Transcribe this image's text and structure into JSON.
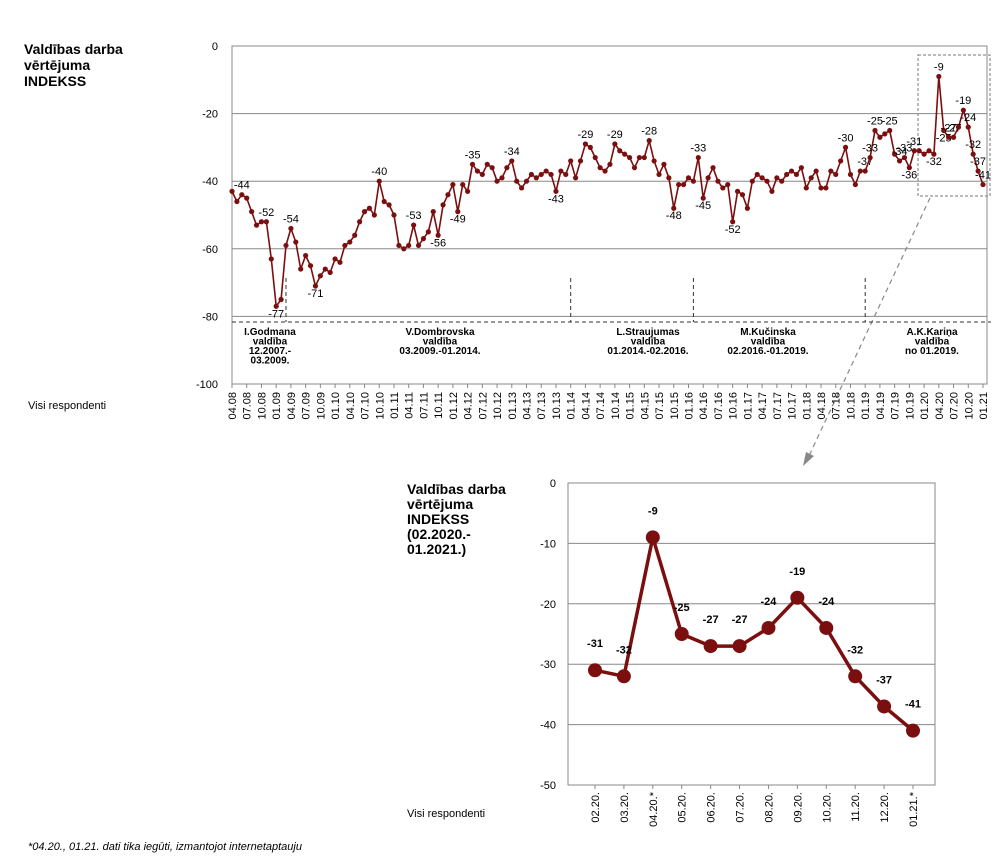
{
  "chart_data": [
    {
      "type": "line",
      "title": [
        "Valdības darba",
        "vērtējuma",
        "INDEKSS"
      ],
      "x_label": "Visi respondenti",
      "categories": [
        "04.08",
        null,
        null,
        "07.08",
        null,
        null,
        "10.08",
        null,
        null,
        "01.09",
        null,
        null,
        "04.09",
        null,
        null,
        "07.09",
        null,
        null,
        "10.09",
        null,
        null,
        "01.10",
        null,
        null,
        "04.10",
        null,
        null,
        "07.10",
        null,
        null,
        "10.10",
        null,
        null,
        "01.11",
        null,
        null,
        "04.11",
        null,
        null,
        "07.11",
        null,
        null,
        "10.11",
        null,
        null,
        "01.12",
        null,
        null,
        "04.12",
        null,
        null,
        "07.12",
        null,
        null,
        "10.12",
        null,
        null,
        "01.13",
        null,
        null,
        "04.13",
        null,
        null,
        "07.13",
        null,
        null,
        "10.13",
        null,
        null,
        "01.14",
        null,
        null,
        "04.14",
        null,
        null,
        "07.14",
        null,
        null,
        "10.14",
        null,
        null,
        "01.15",
        null,
        null,
        "04.15",
        null,
        null,
        "07.15",
        null,
        null,
        "10.15",
        null,
        null,
        "01.16",
        null,
        null,
        "04.16",
        null,
        null,
        "07.16",
        null,
        null,
        "10.16",
        null,
        null,
        "01.17",
        null,
        null,
        "04.17",
        null,
        null,
        "07.17",
        null,
        null,
        "10.17",
        null,
        null,
        "01.18",
        null,
        null,
        "04.18",
        null,
        null,
        "07.18",
        null,
        null,
        "10.18",
        null,
        null,
        "01.19",
        null,
        null,
        "04.19",
        null,
        null,
        "07.19",
        null,
        null,
        "10.19",
        null,
        null,
        "01.20",
        null,
        null,
        "04.20",
        null,
        null,
        "07.20",
        null,
        null,
        "10.20",
        null,
        null,
        "01.21"
      ],
      "values": [
        -43,
        -46,
        -44,
        -45,
        -49,
        -53,
        -52,
        -52,
        -63,
        -77,
        -75,
        -59,
        -54,
        -58,
        -66,
        -62,
        -65,
        -71,
        -68,
        -66,
        -67,
        -63,
        -64,
        -59,
        -58,
        -56,
        -52,
        -49,
        -48,
        -50,
        -40,
        -46,
        -47,
        -50,
        -59,
        -60,
        -59,
        -53,
        -59,
        -57,
        -55,
        -49,
        -56,
        -47,
        -44,
        -41,
        -49,
        -41,
        -43,
        -35,
        -37,
        -38,
        -35,
        -36,
        -40,
        -39,
        -36,
        -34,
        -40,
        -42,
        -40,
        -38,
        -39,
        -38,
        -37,
        -38,
        -43,
        -37,
        -38,
        -34,
        -39,
        -34,
        -29,
        -30,
        -33,
        -36,
        -37,
        -35,
        -29,
        -31,
        -32,
        -33,
        -36,
        -33,
        -33,
        -28,
        -34,
        -38,
        -35,
        -39,
        -48,
        -41,
        -41,
        -39,
        -40,
        -33,
        -45,
        -39,
        -36,
        -40,
        -42,
        -41,
        -52,
        -43,
        -44,
        -48,
        -40,
        -38,
        -39,
        -40,
        -43,
        -39,
        -40,
        -38,
        -37,
        -38,
        -36,
        -42,
        -39,
        -37,
        -42,
        -42,
        -37,
        -38,
        -34,
        -30,
        -38,
        -41,
        -37,
        -37,
        -33,
        -25,
        -27,
        -26,
        -25,
        -32,
        -34,
        -33,
        -36,
        -31,
        -31,
        -32,
        -31,
        -32,
        -9,
        -25,
        -27,
        -27,
        -24,
        -19,
        -24,
        -32,
        -37,
        -41
      ],
      "value_labels": [
        null,
        null,
        "-44",
        null,
        null,
        null,
        null,
        "-52",
        null,
        "-77",
        null,
        null,
        "-54",
        null,
        null,
        null,
        null,
        "-71",
        null,
        null,
        null,
        null,
        null,
        null,
        null,
        null,
        null,
        null,
        null,
        null,
        "-40",
        null,
        null,
        null,
        null,
        null,
        null,
        "-53",
        null,
        null,
        null,
        null,
        "-56",
        null,
        null,
        null,
        "-49",
        null,
        null,
        "-35",
        null,
        null,
        null,
        null,
        null,
        null,
        null,
        "-34",
        null,
        null,
        null,
        null,
        null,
        null,
        null,
        null,
        "-43",
        null,
        null,
        null,
        null,
        null,
        "-29",
        null,
        null,
        null,
        null,
        null,
        "-29",
        null,
        null,
        null,
        null,
        null,
        null,
        "-28",
        null,
        null,
        null,
        null,
        "-48",
        null,
        null,
        null,
        null,
        "-33",
        "-45",
        null,
        null,
        null,
        null,
        null,
        "-52",
        null,
        null,
        null,
        null,
        null,
        null,
        null,
        null,
        null,
        null,
        null,
        null,
        null,
        null,
        null,
        null,
        null,
        null,
        null,
        null,
        null,
        null,
        "-30",
        null,
        null,
        null,
        "-37",
        "-33",
        "-25",
        null,
        null,
        "-25",
        null,
        "-34",
        "-33",
        "-36",
        "-31",
        null,
        null,
        null,
        "-32",
        "-9",
        "-25",
        "-27",
        "-27",
        null,
        "-19",
        "-24",
        "-32",
        "-37",
        "-41"
      ],
      "color": "#7b0f0f",
      "ylim": [
        -100,
        0
      ],
      "yticks": [
        0,
        -20,
        -40,
        -60,
        -80,
        -100
      ],
      "grid": true,
      "governments": [
        [
          "I.Godmana",
          "valdība",
          "12.2007.-",
          "03.2009."
        ],
        [
          "V.Dombrovska",
          "valdība",
          "03.2009.-01.2014."
        ],
        [
          "L.Straujumas",
          "valdība",
          "01.2014.-02.2016."
        ],
        [
          "M.Kučinska",
          "valdība",
          "02.2016.-01.2019."
        ],
        [
          "A.K.Kariņa",
          "valdība",
          "no 01.2019."
        ]
      ]
    },
    {
      "type": "line",
      "title": [
        "Valdības darba",
        "vērtējuma",
        "INDEKSS",
        "(02.2020.-",
        "01.2021.)"
      ],
      "x_label": "Visi respondenti",
      "categories": [
        "02.20.",
        "03.20.",
        "04.20.*",
        "05.20.",
        "06.20.",
        "07.20.",
        "08.20.",
        "09.20.",
        "10.20.",
        "11.20.",
        "12.20.",
        "01.21.*"
      ],
      "values": [
        -31,
        -32,
        -9,
        -25,
        -27,
        -27,
        -24,
        -19,
        -24,
        -32,
        -37,
        -41
      ],
      "color": "#7b0f0f",
      "ylim": [
        -50,
        0
      ],
      "yticks": [
        0,
        -10,
        -20,
        -30,
        -40,
        -50
      ],
      "grid": true
    }
  ],
  "footnote": "*04.20., 01.21. dati tika iegūti, izmantojot internetaptauju"
}
